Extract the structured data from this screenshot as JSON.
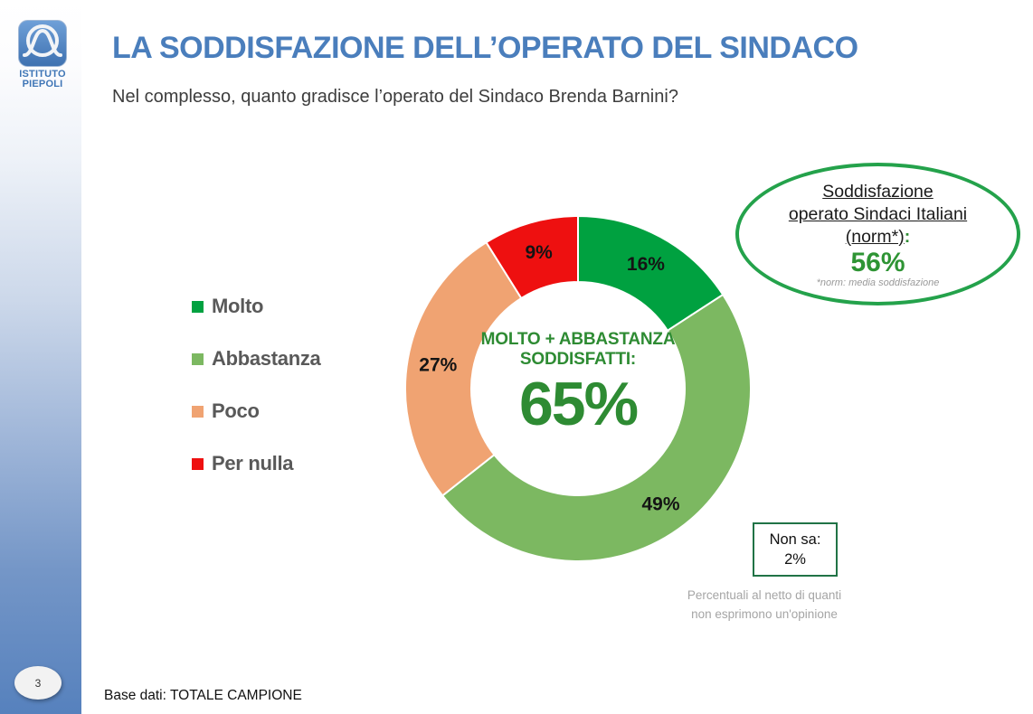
{
  "slide": {
    "title": "LA SODDISFAZIONE DELL’OPERATO DEL SINDACO",
    "question": "Nel complesso, quanto gradisce l’operato del Sindaco Brenda Barnini?",
    "page_number": "3",
    "base_note": "Base dati: TOTALE CAMPIONE",
    "footnote_line1": "Percentuali al netto di quanti",
    "footnote_line2": "non esprimono un'opinione"
  },
  "logo": {
    "name": "Istituto Piepoli",
    "line1": "ISTITUTO",
    "line2": "PIEPOLI"
  },
  "chart_data": {
    "type": "pie",
    "subtype": "donut",
    "categories": [
      "Molto",
      "Abbastanza",
      "Poco",
      "Per nulla"
    ],
    "values": [
      16,
      49,
      27,
      9
    ],
    "labels": [
      "16%",
      "49%",
      "27%",
      "9%"
    ],
    "colors": [
      "#00A140",
      "#7CB861",
      "#F0A372",
      "#EE1010"
    ],
    "value_unit": "%",
    "start_angle": "12 o'clock, clockwise",
    "legend_position": "left",
    "center_label_line1": "MOLTO + ABBASTANZA",
    "center_label_line2": "SODDISFATTI:",
    "center_value": "65%"
  },
  "norm_bubble": {
    "line1": "Soddisfazione",
    "line2": "operato Sindaci Italiani",
    "line3": "(norm*)",
    "colon": ":",
    "value": "56%",
    "footnote": "*norm: media soddisfazione",
    "border_color": "#24A24B"
  },
  "non_sa": {
    "label": "Non sa:",
    "value": "2%"
  },
  "theme": {
    "title_blue": "#4A7EBC",
    "sidebar_blue": "#5681BD",
    "center_green": "#2E8B33",
    "legend_gray": "#595959"
  }
}
